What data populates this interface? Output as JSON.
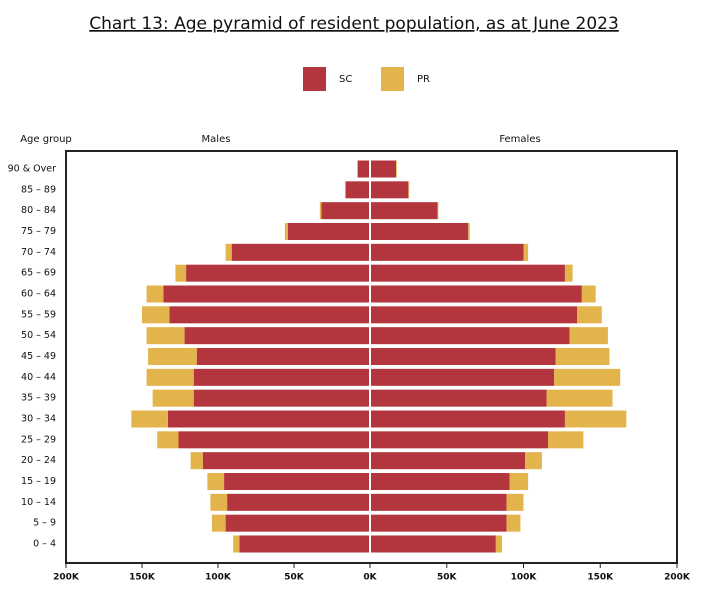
{
  "chart_data": {
    "type": "pyramid",
    "title": "Chart 13: Age pyramid of resident population, as at June 2023",
    "y_label": "Age group",
    "side_labels": [
      "Males",
      "Females"
    ],
    "categories": [
      "0 – 4",
      "5 – 9",
      "10 – 14",
      "15 – 19",
      "20 – 24",
      "25 – 29",
      "30 – 34",
      "35 – 39",
      "40 – 44",
      "45 – 49",
      "50 – 54",
      "55 – 59",
      "60 – 64",
      "65 – 69",
      "70 – 74",
      "75 – 79",
      "80 – 84",
      "85 – 89",
      "90 & Over"
    ],
    "series": [
      {
        "name": "SC",
        "color": "#b3363f",
        "males": [
          86,
          95,
          94,
          96,
          110,
          126,
          133,
          116,
          116,
          114,
          122,
          132,
          136,
          121,
          91,
          54,
          32,
          16,
          8
        ],
        "females": [
          82,
          89,
          89,
          91,
          101,
          116,
          127,
          115,
          120,
          121,
          130,
          135,
          138,
          127,
          100,
          64,
          44,
          25,
          17
        ]
      },
      {
        "name": "PR",
        "color": "#e3b44b",
        "males": [
          4,
          9,
          11,
          11,
          8,
          14,
          24,
          27,
          31,
          32,
          25,
          18,
          11,
          7,
          4,
          2,
          1,
          0.5,
          0.5
        ],
        "females": [
          4,
          9,
          11,
          12,
          11,
          23,
          40,
          43,
          43,
          35,
          25,
          16,
          9,
          5,
          3,
          1,
          0.5,
          0.5,
          0.5
        ]
      }
    ],
    "xlim": [
      0,
      200
    ],
    "xticks_males": [
      {
        "value": 200,
        "label": "200K"
      },
      {
        "value": 150,
        "label": "150K"
      },
      {
        "value": 100,
        "label": "100K"
      },
      {
        "value": 50,
        "label": "50K"
      }
    ],
    "xticks_females": [
      {
        "value": 0,
        "label": "0K"
      },
      {
        "value": 50,
        "label": "50K"
      },
      {
        "value": 100,
        "label": "100K"
      },
      {
        "value": 150,
        "label": "150K"
      },
      {
        "value": 200,
        "label": "200K"
      }
    ]
  }
}
